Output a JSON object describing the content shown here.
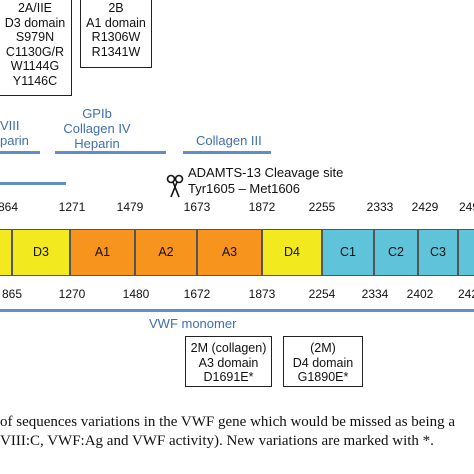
{
  "top_boxes": [
    {
      "lines": [
        "2A/IIE",
        "D3 domain",
        "S979N",
        "C1130G/R",
        "W1144G",
        "Y1146C"
      ]
    },
    {
      "lines": [
        "2B",
        "A1 domain",
        "R1306W",
        "R1341W"
      ]
    }
  ],
  "binding_labels": [
    {
      "lines": [
        "VIII",
        "parin"
      ]
    },
    {
      "lines": [
        "GPIb",
        "Collagen IV",
        "Heparin"
      ]
    },
    {
      "lines": [
        "Collagen III"
      ]
    }
  ],
  "cleavage": {
    "title": "ADAMTS-13 Cleavage site",
    "sequence": "Tyr1605 – Met1606",
    "icon": "scissors-icon"
  },
  "domains": [
    {
      "label": "",
      "color": "#f2ea1e"
    },
    {
      "label": "D3",
      "color": "#f2ea1e"
    },
    {
      "label": "A1",
      "color": "#f7941d"
    },
    {
      "label": "A2",
      "color": "#f7941d"
    },
    {
      "label": "A3",
      "color": "#f7941d"
    },
    {
      "label": "D4",
      "color": "#f2ea1e"
    },
    {
      "label": "C1",
      "color": "#5fc3d9"
    },
    {
      "label": "C2",
      "color": "#5fc3d9"
    },
    {
      "label": "C3",
      "color": "#5fc3d9"
    },
    {
      "label": "",
      "color": "#5fc3d9"
    }
  ],
  "top_numbers": [
    "864",
    "1271",
    "1479",
    "1673",
    "1872",
    "2255",
    "2333",
    "2429",
    "249"
  ],
  "bottom_numbers": [
    "865",
    "1270",
    "1480",
    "1672",
    "1873",
    "2254",
    "2334",
    "2402",
    "242"
  ],
  "monomer_label": "VWF monomer",
  "bottom_boxes": [
    {
      "lines": [
        "2M (collagen)",
        "A3 domain",
        "D1691E*"
      ]
    },
    {
      "lines": [
        "(2M)",
        "D4 domain",
        "G1890E*"
      ]
    }
  ],
  "caption": [
    "of sequences variations in the VWF gene which would be missed as being a",
    "VIII:C, VWF:Ag and VWF activity). New variations are marked with *."
  ]
}
